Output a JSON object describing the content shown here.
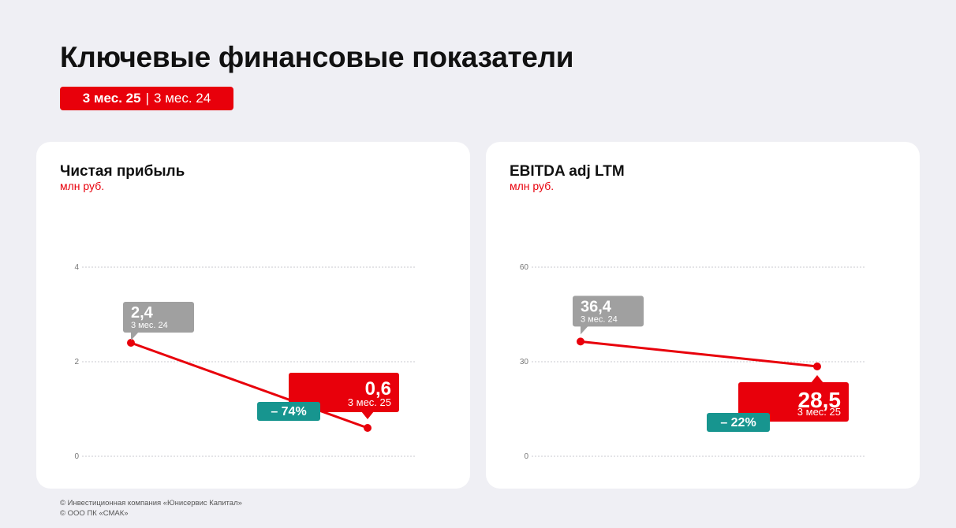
{
  "title": "Ключевые финансовые показатели",
  "period": {
    "current": "3 мес. 25",
    "separator": "|",
    "previous": "3 мес. 24"
  },
  "colors": {
    "accent": "#e8000b",
    "previous_label": "#a0a0a0",
    "change": "#17958f",
    "background": "#efeff4"
  },
  "chart_data": [
    {
      "type": "line",
      "title": "Чистая прибыль",
      "unit": "млн руб.",
      "yticks": [
        0,
        2,
        4
      ],
      "ylim": [
        0,
        4
      ],
      "grid": true,
      "points": [
        {
          "y": 2.4,
          "value_label": "2,4",
          "period_label": "3 мес. 24",
          "emphasis": "previous"
        },
        {
          "y": 0.6,
          "value_label": "0,6",
          "period_label": "3 мес. 25",
          "emphasis": "current"
        }
      ],
      "change_label": "– 74%"
    },
    {
      "type": "line",
      "title": "EBITDA adj LTM",
      "unit": "млн руб.",
      "yticks": [
        0,
        30,
        60
      ],
      "ylim": [
        0,
        60
      ],
      "grid": true,
      "points": [
        {
          "y": 36.4,
          "value_label": "36,4",
          "period_label": "3 мес. 24",
          "emphasis": "previous"
        },
        {
          "y": 28.5,
          "value_label": "28,5",
          "period_label": "3 мес. 25",
          "emphasis": "current"
        }
      ],
      "change_label": "– 22%"
    }
  ],
  "footer": [
    "© Инвестиционная компания «Юнисервис Капитал»",
    "© ООО ПК «СМАК»"
  ]
}
